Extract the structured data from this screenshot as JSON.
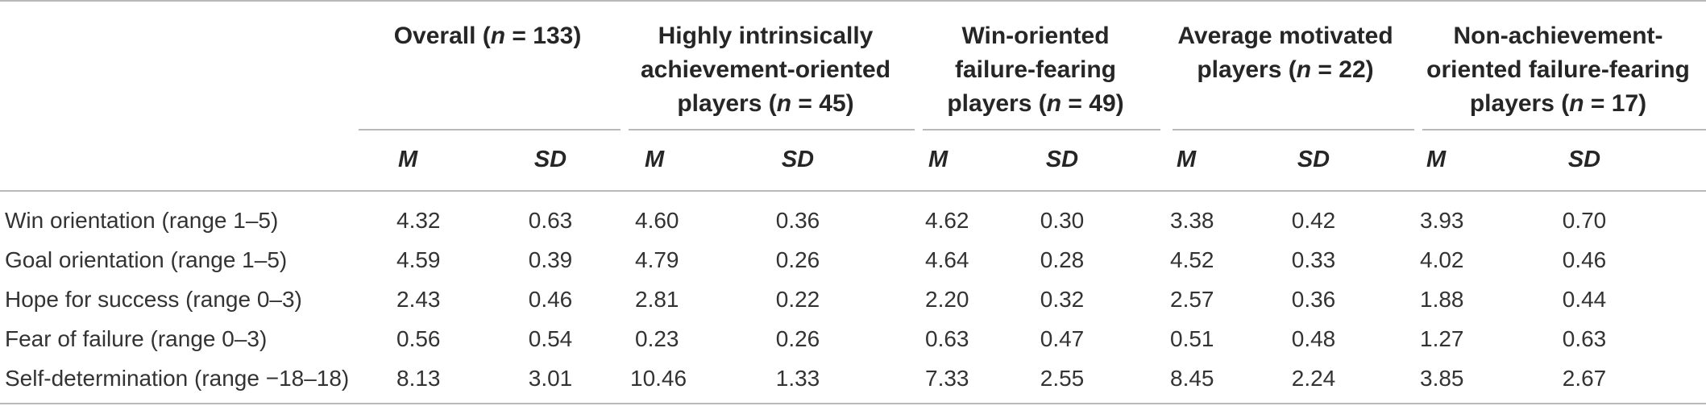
{
  "groups": [
    {
      "pre": "Overall (",
      "n": "n",
      "post": " = 133)"
    },
    {
      "line1": "Highly intrinsically",
      "line2": "achievement-oriented",
      "line3pre": "players (",
      "n": "n",
      "line3post": " = 45)"
    },
    {
      "line1": "Win-oriented",
      "line2": "failure-fearing",
      "line3pre": "players (",
      "n": "n",
      "line3post": " = 49)"
    },
    {
      "line1": "Average motivated",
      "line2pre": "players (",
      "n": "n",
      "line2post": " = 22)"
    },
    {
      "line1": "Non-achievement-",
      "line2": "oriented failure-fearing",
      "line3pre": "players (",
      "n": "n",
      "line3post": " = 17)"
    }
  ],
  "subheaders": {
    "m": "M",
    "sd": "SD"
  },
  "rows": [
    {
      "label": "Win orientation (range 1–5)",
      "values": [
        "4.32",
        "0.63",
        "4.60",
        "0.36",
        "4.62",
        "0.30",
        "3.38",
        "0.42",
        "3.93",
        "0.70"
      ]
    },
    {
      "label": "Goal orientation (range 1–5)",
      "values": [
        "4.59",
        "0.39",
        "4.79",
        "0.26",
        "4.64",
        "0.28",
        "4.52",
        "0.33",
        "4.02",
        "0.46"
      ]
    },
    {
      "label": "Hope for success (range 0–3)",
      "values": [
        "2.43",
        "0.46",
        "2.81",
        "0.22",
        "2.20",
        "0.32",
        "2.57",
        "0.36",
        "1.88",
        "0.44"
      ]
    },
    {
      "label": "Fear of failure (range 0–3)",
      "values": [
        "0.56",
        "0.54",
        "0.23",
        "0.26",
        "0.63",
        "0.47",
        "0.51",
        "0.48",
        "1.27",
        "0.63"
      ]
    },
    {
      "label": "Self-determination (range −18–18)",
      "values": [
        "8.13",
        "3.01",
        "10.46",
        "1.33",
        "7.33",
        "2.55",
        "8.45",
        "2.24",
        "3.85",
        "2.67"
      ]
    }
  ]
}
